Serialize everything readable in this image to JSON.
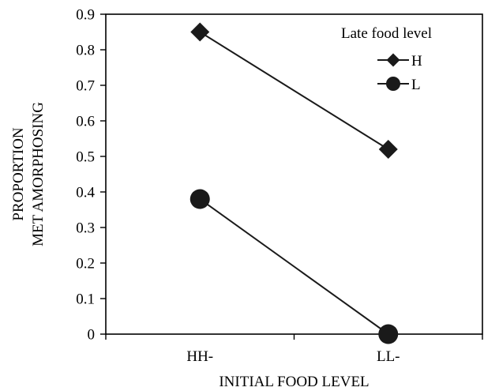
{
  "chart_data": {
    "type": "line",
    "title": "",
    "xlabel": "INITIAL FOOD LEVEL",
    "ylabel_lines": [
      "PROPORTION",
      "MET AMORPHOSING"
    ],
    "categories": [
      "HH-",
      "LL-"
    ],
    "ylim": [
      0,
      0.9
    ],
    "yticks": [
      0,
      0.1,
      0.2,
      0.3,
      0.4,
      0.5,
      0.6,
      0.7,
      0.8,
      0.9
    ],
    "ytick_labels": [
      "0",
      "0.1",
      "0.2",
      "0.3",
      "0.4",
      "0.5",
      "0.6",
      "0.7",
      "0.8",
      "0.9"
    ],
    "grid": false,
    "legend": {
      "title": "Late food level",
      "placement": "top-right"
    },
    "series": [
      {
        "name": "H",
        "marker": "diamond",
        "values": [
          0.85,
          0.52
        ]
      },
      {
        "name": "L",
        "marker": "circle",
        "values": [
          0.38,
          0.0
        ]
      }
    ]
  },
  "colors": {
    "line": "#1a1a1a",
    "marker": "#1a1a1a",
    "axis": "#000000",
    "background": "#ffffff"
  }
}
